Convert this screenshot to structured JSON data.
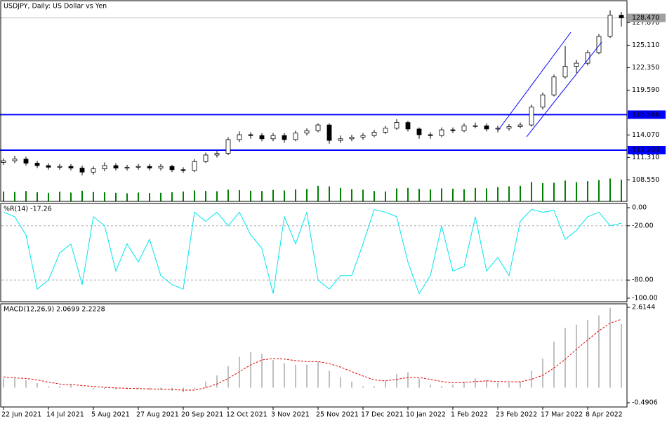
{
  "chart_data": [
    {
      "type": "candlestick",
      "title": "USDJPY, Daily:  US Dollar vs Yen",
      "categories": [
        "22 Jun 2021",
        null,
        null,
        null,
        "14 Jul 2021",
        null,
        null,
        null,
        "5 Aug 2021",
        null,
        null,
        null,
        "27 Aug 2021",
        null,
        null,
        null,
        "20 Sep 2021",
        null,
        null,
        null,
        "12 Oct 2021",
        null,
        null,
        null,
        "3 Nov 2021",
        null,
        null,
        null,
        "25 Nov 2021",
        null,
        null,
        null,
        "17 Dec 2021",
        null,
        null,
        null,
        "10 Jan 2022",
        null,
        null,
        null,
        "1 Feb 2022",
        null,
        null,
        null,
        "23 Feb 2022",
        null,
        null,
        null,
        "17 Mar 2022",
        null,
        null,
        null,
        "8 Apr 2022",
        null,
        null,
        null
      ],
      "open": [
        110.7,
        110.9,
        111.1,
        110.6,
        110.3,
        110.1,
        110.2,
        110.0,
        109.5,
        109.9,
        110.3,
        110.0,
        110.1,
        110.2,
        110.0,
        110.2,
        109.8,
        109.7,
        110.8,
        111.6,
        111.8,
        113.5,
        114.1,
        114.0,
        113.6,
        114.0,
        113.5,
        114.3,
        114.6,
        115.3,
        113.4,
        113.6,
        113.8,
        114.0,
        114.4,
        114.9,
        115.6,
        114.8,
        114.1,
        114.0,
        114.7,
        114.6,
        115.2,
        115.2,
        114.8,
        114.9,
        115.1,
        115.3,
        117.5,
        119.0,
        121.2,
        122.5,
        122.9,
        124.2,
        126.2,
        128.8
      ],
      "high": [
        111.2,
        111.5,
        111.4,
        110.9,
        110.6,
        110.5,
        110.5,
        110.3,
        110.2,
        110.7,
        110.6,
        110.4,
        110.5,
        110.5,
        110.5,
        110.4,
        110.1,
        111.1,
        111.9,
        112.1,
        113.8,
        114.5,
        114.4,
        114.3,
        114.3,
        114.3,
        114.6,
        114.9,
        115.5,
        115.5,
        114.0,
        114.1,
        114.3,
        114.7,
        115.2,
        116.0,
        115.8,
        115.0,
        114.4,
        115.0,
        115.0,
        115.5,
        115.6,
        115.5,
        115.2,
        115.4,
        115.6,
        117.8,
        119.3,
        121.5,
        125.0,
        123.3,
        124.5,
        126.5,
        129.4,
        129.2
      ],
      "low": [
        110.4,
        110.6,
        110.3,
        110.0,
        109.8,
        109.8,
        109.7,
        109.1,
        109.2,
        109.6,
        109.7,
        109.7,
        109.8,
        109.7,
        109.7,
        109.5,
        109.4,
        109.5,
        110.6,
        111.3,
        111.6,
        113.2,
        113.6,
        113.3,
        113.3,
        113.1,
        113.3,
        114.0,
        114.4,
        113.0,
        113.1,
        113.3,
        113.5,
        113.8,
        114.2,
        114.7,
        114.5,
        113.6,
        113.6,
        113.8,
        114.3,
        114.4,
        114.9,
        114.5,
        114.4,
        114.6,
        114.9,
        115.1,
        117.2,
        118.8,
        121.0,
        121.7,
        122.6,
        124.0,
        126.0,
        127.4
      ],
      "close": [
        110.9,
        111.1,
        110.6,
        110.3,
        110.1,
        110.2,
        110.0,
        109.5,
        109.9,
        110.3,
        110.0,
        110.1,
        110.2,
        110.0,
        110.2,
        109.8,
        109.7,
        110.8,
        111.6,
        111.8,
        113.5,
        114.1,
        114.0,
        113.6,
        114.0,
        113.5,
        114.3,
        114.6,
        115.3,
        113.4,
        113.6,
        113.8,
        114.0,
        114.4,
        114.9,
        115.6,
        114.8,
        114.1,
        114.0,
        114.7,
        114.6,
        115.2,
        115.2,
        114.8,
        114.9,
        115.1,
        115.3,
        117.5,
        119.0,
        121.2,
        122.5,
        122.9,
        124.2,
        126.2,
        128.8,
        128.47
      ],
      "volume": [
        38000,
        36000,
        40000,
        35000,
        33000,
        37000,
        34000,
        41000,
        36000,
        35000,
        33000,
        31000,
        34000,
        32000,
        33000,
        35000,
        38000,
        42000,
        40000,
        39000,
        45000,
        43000,
        41000,
        40000,
        44000,
        42000,
        46000,
        48000,
        60000,
        58000,
        52000,
        47000,
        45000,
        40000,
        38000,
        50000,
        52000,
        48000,
        46000,
        50000,
        49000,
        47000,
        52000,
        50000,
        55000,
        58000,
        60000,
        75000,
        70000,
        72000,
        80000,
        74000,
        78000,
        82000,
        88000,
        84000
      ],
      "vlim": [
        0,
        100000
      ],
      "candle_color": "#000000",
      "volume_color": "#008000",
      "ylim": [
        105.9,
        130.5
      ],
      "yticks": [
        {
          "value": 127.87,
          "label": "127.870"
        },
        {
          "value": 125.11,
          "label": "125.110"
        },
        {
          "value": 122.35,
          "label": "122.350"
        },
        {
          "value": 119.59,
          "label": "119.590"
        },
        {
          "value": 114.07,
          "label": "114.070"
        },
        {
          "value": 111.31,
          "label": "111.310"
        },
        {
          "value": 108.55,
          "label": "108.550"
        }
      ],
      "hlines": [
        {
          "value": 116.566,
          "label": "116.566",
          "color": "#0000ff"
        },
        {
          "value": 112.203,
          "label": "112.203",
          "color": "#0000ff"
        }
      ],
      "last_price": {
        "value": 128.47,
        "label": "128.470",
        "color": "#a0a0a0"
      }
    },
    {
      "type": "line",
      "title": "%R(14) -17.26",
      "values": [
        -5,
        -10,
        -30,
        -90,
        -80,
        -50,
        -40,
        -85,
        -10,
        -20,
        -70,
        -40,
        -60,
        -35,
        -75,
        -85,
        -90,
        -5,
        -15,
        -5,
        -20,
        -5,
        -30,
        -45,
        -95,
        -10,
        -40,
        -5,
        -80,
        -90,
        -75,
        -75,
        -40,
        -2,
        -5,
        -10,
        -60,
        -95,
        -75,
        -20,
        -70,
        -65,
        -10,
        -70,
        -55,
        -75,
        -15,
        -2,
        -5,
        -3,
        -35,
        -25,
        -10,
        -5,
        -20,
        -17.26
      ],
      "color": "#00e5ee",
      "ylim": [
        -103.9,
        4.65
      ],
      "yticks": [
        {
          "value": 0,
          "label": "0.00"
        },
        {
          "value": -20,
          "label": "-20.00"
        },
        {
          "value": -80,
          "label": "-80.00"
        },
        {
          "value": -100,
          "label": "-100.00"
        }
      ],
      "levels": [
        -20,
        -80
      ]
    },
    {
      "type": "macd",
      "title": "MACD(12,26,9) 2.0699 2.2228",
      "histogram": [
        0.3,
        0.3,
        0.25,
        0.15,
        0.05,
        0.05,
        0.1,
        0.0,
        -0.05,
        -0.05,
        -0.05,
        -0.05,
        -0.05,
        -0.08,
        -0.08,
        -0.1,
        -0.15,
        -0.05,
        0.2,
        0.4,
        0.7,
        1.0,
        1.15,
        1.1,
        0.9,
        0.8,
        0.75,
        0.75,
        0.85,
        0.55,
        0.35,
        0.2,
        0.05,
        0.05,
        0.2,
        0.45,
        0.5,
        0.3,
        0.1,
        0.05,
        0.1,
        0.2,
        0.3,
        0.25,
        0.15,
        0.15,
        0.2,
        0.55,
        0.95,
        1.5,
        1.95,
        2.05,
        2.2,
        2.35,
        2.6,
        2.0699
      ],
      "signal": [
        0.35,
        0.32,
        0.3,
        0.25,
        0.18,
        0.12,
        0.1,
        0.07,
        0.04,
        0.01,
        -0.01,
        -0.02,
        -0.03,
        -0.04,
        -0.05,
        -0.06,
        -0.08,
        -0.08,
        0.0,
        0.12,
        0.3,
        0.52,
        0.74,
        0.9,
        0.95,
        0.93,
        0.88,
        0.85,
        0.85,
        0.78,
        0.67,
        0.52,
        0.38,
        0.25,
        0.22,
        0.27,
        0.33,
        0.33,
        0.27,
        0.2,
        0.16,
        0.17,
        0.2,
        0.22,
        0.2,
        0.19,
        0.19,
        0.27,
        0.4,
        0.64,
        0.92,
        1.25,
        1.55,
        1.85,
        2.1,
        2.2228
      ],
      "histogram_color": "#c0c0c0",
      "signal_color": "#e00000",
      "ylim": [
        -0.628,
        2.728
      ],
      "yticks": [
        2.6144,
        -0.4906
      ]
    }
  ]
}
